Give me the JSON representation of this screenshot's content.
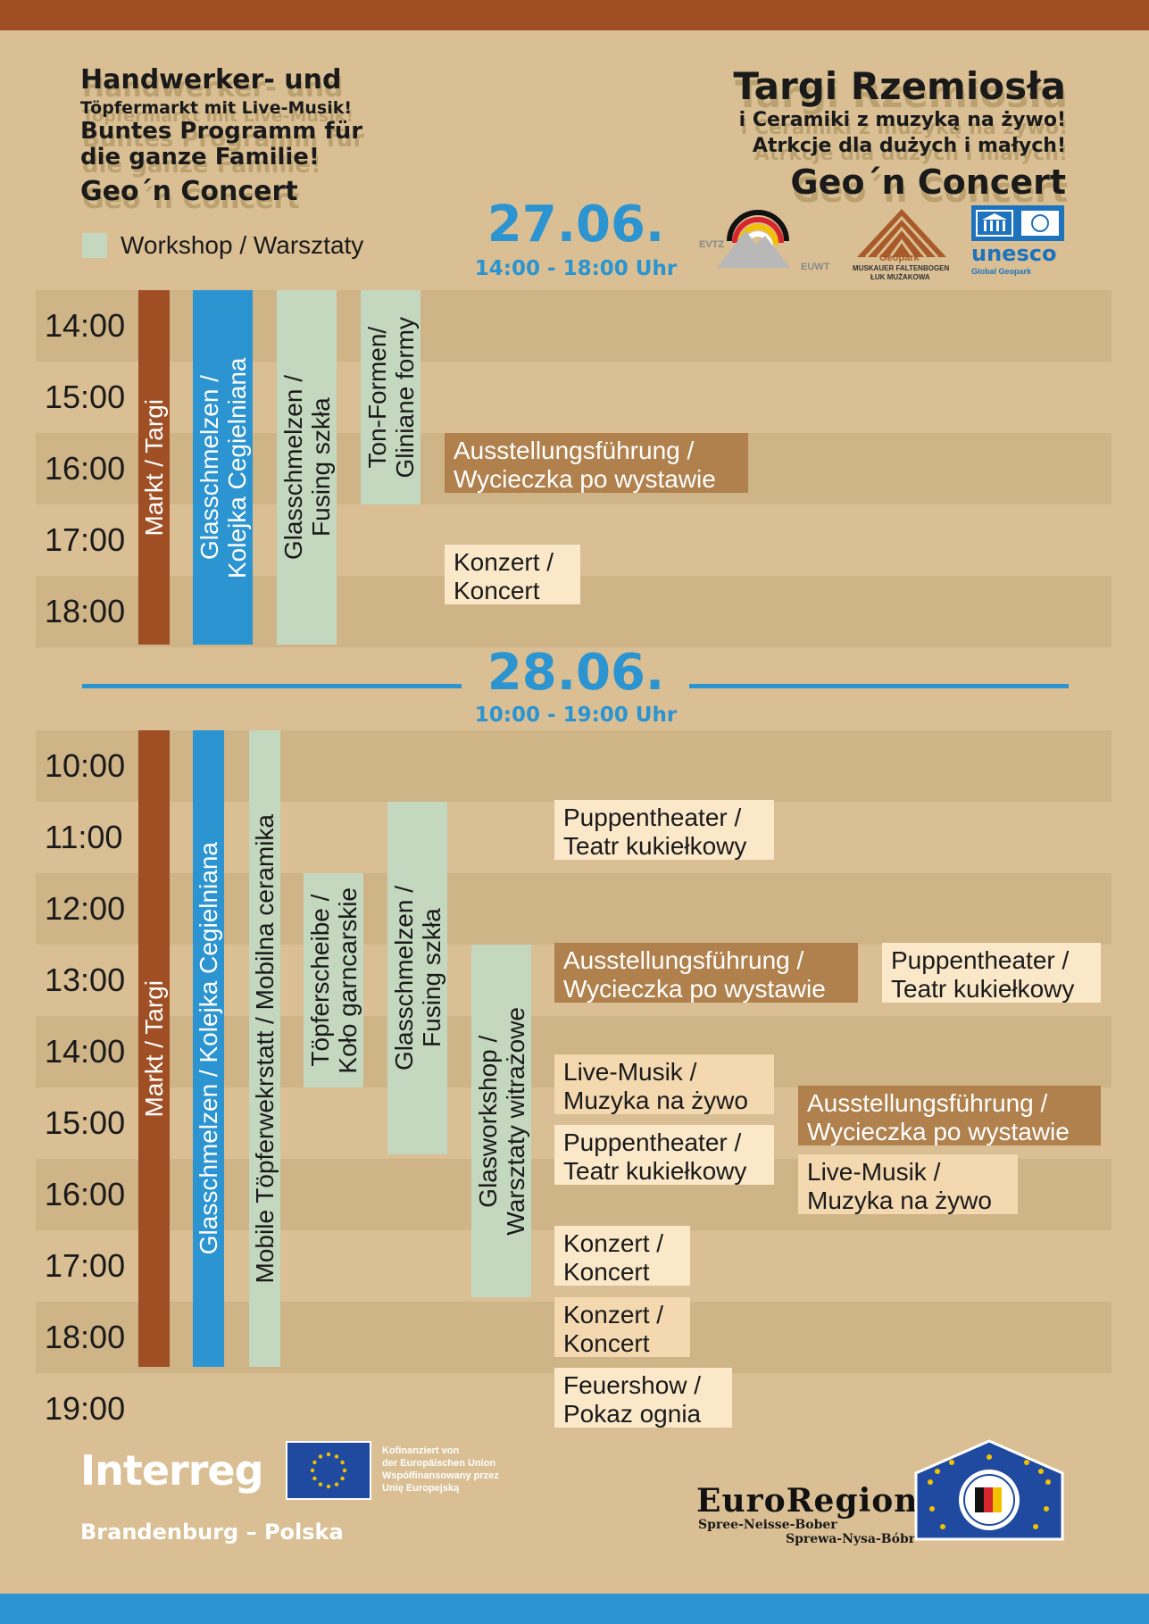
{
  "header": {
    "de_line1": "Handwerker- und",
    "de_line2": "Töpfermarkt mit Live-Musik!",
    "de_line3": "Buntes Programm für",
    "de_line4": "die ganze Familie!",
    "de_line5": "Geo´n Concert",
    "pl_line1": "Targi Rzemiosła",
    "pl_line2": "i Ceramiki z muzyką na żywo!",
    "pl_line3": "Atrkcje dla dużych i małych!",
    "pl_line4": "Geo´n Concert"
  },
  "legend": {
    "label": "Workshop / Warsztaty",
    "color": "#c4d7bf"
  },
  "day1": {
    "date": "27.06.",
    "hours": "14:00 - 18:00 Uhr",
    "times": [
      "14:00",
      "15:00",
      "16:00",
      "17:00",
      "18:00"
    ],
    "columns": {
      "markt": "Markt / Targi",
      "glass_blue": "Glasschmelzen / Kolejka Cegielniana",
      "glass_fusing_a": "Glasschmelzen /",
      "glass_fusing_b": "Fusing szkła",
      "ton_a": "Ton-Formen/",
      "ton_b": "Gliniane formy"
    },
    "events": {
      "tour_a": "Ausstellungsführung /",
      "tour_b": "Wycieczka po wystawie",
      "concert_a": "Konzert /",
      "concert_b": "Koncert"
    }
  },
  "day2": {
    "date": "28.06.",
    "hours": "10:00 - 19:00 Uhr",
    "times": [
      "10:00",
      "11:00",
      "12:00",
      "13:00",
      "14:00",
      "15:00",
      "16:00",
      "17:00",
      "18:00",
      "19:00"
    ],
    "columns": {
      "markt": "Markt / Targi",
      "glass_blue": "Glasschmelzen / Kolejka Cegielniana",
      "pottery": "Mobile Töpferwekrstatt / Mobilna ceramika",
      "wheel_a": "Töpferscheibe /",
      "wheel_b": "Koło garncarskie",
      "fusing_a": "Glasschmelzen /",
      "fusing_b": "Fusing szkła",
      "glassws_a": "Glasworkshop /",
      "glassws_b": "Warsztaty witrażowe"
    },
    "events": {
      "puppet1_a": "Puppentheater /",
      "puppet1_b": "Teatr kukiełkowy",
      "tour1_a": "Ausstellungsführung /",
      "tour1_b": "Wycieczka po wystawie",
      "puppet2_a": "Puppentheater /",
      "puppet2_b": "Teatr kukiełkowy",
      "live1_a": "Live-Musik /",
      "live1_b": "Muzyka na żywo",
      "tour2_a": "Ausstellungsführung /",
      "tour2_b": "Wycieczka po wystawie",
      "puppet3_a": "Puppentheater /",
      "puppet3_b": "Teatr kukiełkowy",
      "live2_a": "Live-Musik /",
      "live2_b": "Muzyka na żywo",
      "concert1_a": "Konzert /",
      "concert1_b": "Koncert",
      "concert2_a": "Konzert /",
      "concert2_b": "Koncert",
      "fire_a": "Feuershow /",
      "fire_b": "Pokaz ognia"
    }
  },
  "logos": {
    "evtz": "EVTZ",
    "euwt": "EUWT",
    "geopark_a": "Geopark",
    "geopark_b": "MUSKAUER FALTENBOGEN",
    "geopark_c": "ŁUK MUŻAKOWA",
    "unesco": "unesco",
    "unesco_sub": "Global Geopark",
    "interreg": "Interreg",
    "brandenburg": "Brandenburg – Polska",
    "cofin_1": "Kofinanziert von",
    "cofin_2": "der Europäischen Union",
    "cofin_3": "Współfinansowany przez",
    "cofin_4": "Unię Europejską",
    "euroregion": "EuroRegion",
    "er_de": "Spree-Neisse-Bober",
    "er_pl": "Sprewa-Nysa-Bóbr"
  },
  "colors": {
    "background": "#d9bf93",
    "row_dark": "#ceb487",
    "brown": "#a04f24",
    "blue": "#2b94d1",
    "green": "#c4d7bf",
    "tour": "#b0814d",
    "light": "#fbe8c9"
  }
}
